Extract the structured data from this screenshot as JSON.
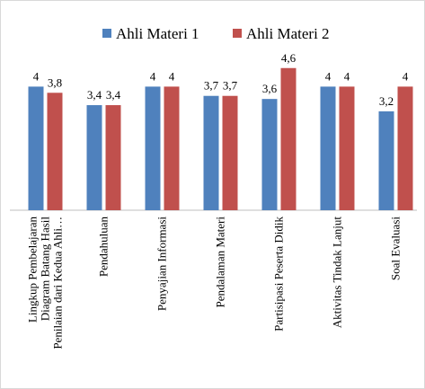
{
  "chart_data": {
    "type": "bar",
    "categories": [
      "Lingkup Pembelajaran\nDiagram Batang Hasil\nPenilaian dari Kedua Ahli…",
      "Pendahuluan",
      "Penyajian Informasi",
      "Pendalaman Materi",
      "Partisipasi Peserta Didik",
      "Aktivitas Tindak Lanjut",
      "Soal Evaluasi"
    ],
    "series": [
      {
        "name": "Ahli Materi 1",
        "color": "#4f81bd",
        "values": [
          4,
          3.4,
          4,
          3.7,
          3.6,
          4,
          3.2
        ],
        "value_labels": [
          "4",
          "3,4",
          "4",
          "3,7",
          "3,6",
          "4",
          "3,2"
        ]
      },
      {
        "name": "Ahli Materi 2",
        "color": "#c0504d",
        "values": [
          3.8,
          3.4,
          4,
          3.7,
          4.6,
          4,
          4
        ],
        "value_labels": [
          "3,8",
          "3,4",
          "4",
          "3,7",
          "4,6",
          "4",
          "4"
        ]
      }
    ],
    "ylim": [
      0,
      5
    ],
    "legend": "top"
  }
}
